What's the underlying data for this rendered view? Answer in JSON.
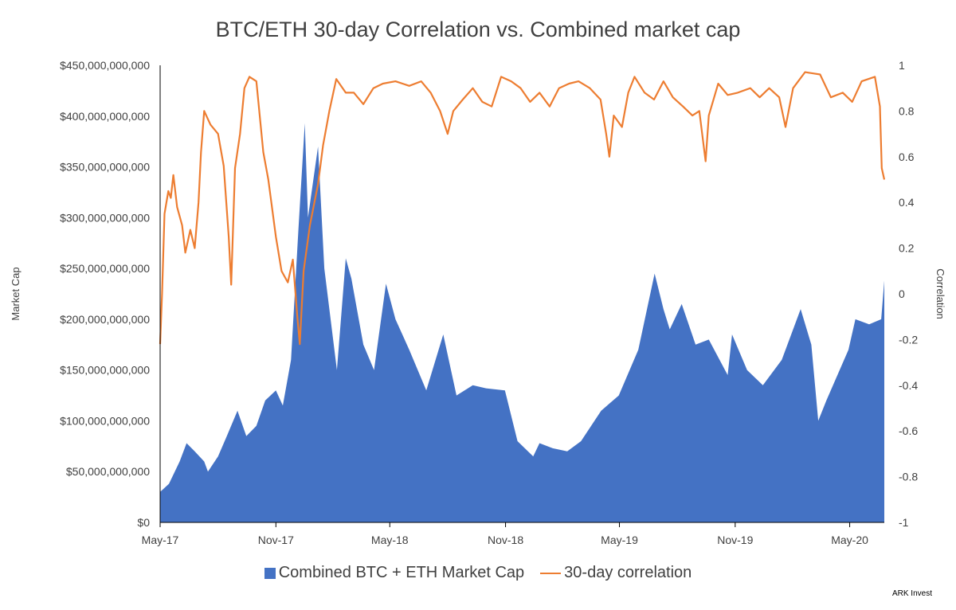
{
  "chart_data": {
    "type": "area",
    "title": "BTC/ETH 30-day Correlation vs. Combined market cap",
    "x_tick_labels": [
      "May-17",
      "Nov-17",
      "May-18",
      "Nov-18",
      "May-19",
      "Nov-19",
      "May-20"
    ],
    "x_range": [
      "2017-05",
      "2020-06-25"
    ],
    "y_left": {
      "label": "Market Cap",
      "range": [
        0,
        450000000000
      ],
      "tick_values": [
        0,
        50000000000,
        100000000000,
        150000000000,
        200000000000,
        250000000000,
        300000000000,
        350000000000,
        400000000000,
        450000000000
      ],
      "tick_labels": [
        "$0",
        "$50,000,000,000",
        "$100,000,000,000",
        "$150,000,000,000",
        "$200,000,000,000",
        "$250,000,000,000",
        "$300,000,000,000",
        "$350,000,000,000",
        "$400,000,000,000",
        "$450,000,000,000"
      ]
    },
    "y_right": {
      "label": "Correlation",
      "range": [
        -1,
        1
      ],
      "tick_values": [
        -1,
        -0.8,
        -0.6,
        -0.4,
        -0.2,
        0,
        0.2,
        0.4,
        0.6,
        0.8,
        1
      ],
      "tick_labels": [
        "-1",
        "-0.8",
        "-0.6",
        "-0.4",
        "-0.2",
        "0",
        "0.2",
        "0.4",
        "0.6",
        "0.8",
        "1"
      ]
    },
    "grid": false,
    "legend_position": "bottom",
    "series": [
      {
        "name": "Combined BTC + ETH Market Cap",
        "kind": "area",
        "axis": "left",
        "color": "#4472C4",
        "points": [
          [
            "2017-05-01",
            30000000000
          ],
          [
            "2017-05-15",
            38000000000
          ],
          [
            "2017-06-01",
            60000000000
          ],
          [
            "2017-06-12",
            78000000000
          ],
          [
            "2017-06-25",
            70000000000
          ],
          [
            "2017-07-10",
            60000000000
          ],
          [
            "2017-07-16",
            50000000000
          ],
          [
            "2017-08-01",
            65000000000
          ],
          [
            "2017-08-15",
            85000000000
          ],
          [
            "2017-09-01",
            110000000000
          ],
          [
            "2017-09-15",
            85000000000
          ],
          [
            "2017-10-01",
            95000000000
          ],
          [
            "2017-10-15",
            120000000000
          ],
          [
            "2017-11-01",
            130000000000
          ],
          [
            "2017-11-12",
            115000000000
          ],
          [
            "2017-11-25",
            160000000000
          ],
          [
            "2017-12-07",
            290000000000
          ],
          [
            "2017-12-17",
            393000000000
          ],
          [
            "2017-12-22",
            300000000000
          ],
          [
            "2018-01-07",
            370000000000
          ],
          [
            "2018-01-17",
            250000000000
          ],
          [
            "2018-02-06",
            150000000000
          ],
          [
            "2018-02-20",
            260000000000
          ],
          [
            "2018-03-01",
            240000000000
          ],
          [
            "2018-03-20",
            175000000000
          ],
          [
            "2018-04-06",
            150000000000
          ],
          [
            "2018-04-25",
            235000000000
          ],
          [
            "2018-05-10",
            200000000000
          ],
          [
            "2018-06-01",
            170000000000
          ],
          [
            "2018-06-28",
            130000000000
          ],
          [
            "2018-07-25",
            185000000000
          ],
          [
            "2018-08-15",
            125000000000
          ],
          [
            "2018-09-10",
            135000000000
          ],
          [
            "2018-10-01",
            132000000000
          ],
          [
            "2018-10-31",
            130000000000
          ],
          [
            "2018-11-20",
            80000000000
          ],
          [
            "2018-12-15",
            65000000000
          ],
          [
            "2018-12-25",
            78000000000
          ],
          [
            "2019-01-15",
            73000000000
          ],
          [
            "2019-02-07",
            70000000000
          ],
          [
            "2019-03-01",
            80000000000
          ],
          [
            "2019-04-02",
            110000000000
          ],
          [
            "2019-04-30",
            125000000000
          ],
          [
            "2019-05-31",
            170000000000
          ],
          [
            "2019-06-26",
            245000000000
          ],
          [
            "2019-07-10",
            210000000000
          ],
          [
            "2019-07-20",
            190000000000
          ],
          [
            "2019-08-08",
            215000000000
          ],
          [
            "2019-08-30",
            175000000000
          ],
          [
            "2019-09-20",
            180000000000
          ],
          [
            "2019-10-20",
            145000000000
          ],
          [
            "2019-10-27",
            185000000000
          ],
          [
            "2019-11-20",
            150000000000
          ],
          [
            "2019-12-15",
            135000000000
          ],
          [
            "2020-01-14",
            160000000000
          ],
          [
            "2020-02-13",
            210000000000
          ],
          [
            "2020-03-01",
            175000000000
          ],
          [
            "2020-03-12",
            100000000000
          ],
          [
            "2020-03-25",
            120000000000
          ],
          [
            "2020-04-29",
            170000000000
          ],
          [
            "2020-05-10",
            200000000000
          ],
          [
            "2020-06-01",
            195000000000
          ],
          [
            "2020-06-20",
            200000000000
          ],
          [
            "2020-06-25",
            238000000000
          ]
        ]
      },
      {
        "name": "30-day correlation",
        "kind": "line",
        "axis": "right",
        "color": "#ED7D31",
        "points": [
          [
            "2017-05-01",
            -0.22
          ],
          [
            "2017-05-04",
            0.0
          ],
          [
            "2017-05-08",
            0.35
          ],
          [
            "2017-05-14",
            0.45
          ],
          [
            "2017-05-18",
            0.42
          ],
          [
            "2017-05-22",
            0.52
          ],
          [
            "2017-05-28",
            0.38
          ],
          [
            "2017-06-05",
            0.3
          ],
          [
            "2017-06-10",
            0.18
          ],
          [
            "2017-06-18",
            0.28
          ],
          [
            "2017-06-25",
            0.2
          ],
          [
            "2017-07-01",
            0.4
          ],
          [
            "2017-07-05",
            0.62
          ],
          [
            "2017-07-10",
            0.8
          ],
          [
            "2017-07-20",
            0.74
          ],
          [
            "2017-08-01",
            0.7
          ],
          [
            "2017-08-10",
            0.56
          ],
          [
            "2017-08-18",
            0.25
          ],
          [
            "2017-08-22",
            0.04
          ],
          [
            "2017-08-28",
            0.55
          ],
          [
            "2017-09-05",
            0.7
          ],
          [
            "2017-09-12",
            0.9
          ],
          [
            "2017-09-20",
            0.95
          ],
          [
            "2017-10-01",
            0.93
          ],
          [
            "2017-10-12",
            0.62
          ],
          [
            "2017-10-20",
            0.5
          ],
          [
            "2017-11-01",
            0.25
          ],
          [
            "2017-11-10",
            0.1
          ],
          [
            "2017-11-20",
            0.05
          ],
          [
            "2017-11-28",
            0.15
          ],
          [
            "2017-12-05",
            -0.1
          ],
          [
            "2017-12-09",
            -0.22
          ],
          [
            "2017-12-15",
            0.1
          ],
          [
            "2017-12-25",
            0.3
          ],
          [
            "2018-01-07",
            0.48
          ],
          [
            "2018-01-15",
            0.65
          ],
          [
            "2018-01-25",
            0.8
          ],
          [
            "2018-02-05",
            0.94
          ],
          [
            "2018-02-20",
            0.88
          ],
          [
            "2018-03-05",
            0.88
          ],
          [
            "2018-03-20",
            0.83
          ],
          [
            "2018-04-05",
            0.9
          ],
          [
            "2018-04-20",
            0.92
          ],
          [
            "2018-05-10",
            0.93
          ],
          [
            "2018-06-01",
            0.91
          ],
          [
            "2018-06-20",
            0.93
          ],
          [
            "2018-07-05",
            0.88
          ],
          [
            "2018-07-20",
            0.8
          ],
          [
            "2018-08-01",
            0.7
          ],
          [
            "2018-08-10",
            0.8
          ],
          [
            "2018-08-25",
            0.85
          ],
          [
            "2018-09-10",
            0.9
          ],
          [
            "2018-09-25",
            0.84
          ],
          [
            "2018-10-10",
            0.82
          ],
          [
            "2018-10-25",
            0.95
          ],
          [
            "2018-11-10",
            0.93
          ],
          [
            "2018-11-25",
            0.9
          ],
          [
            "2018-12-10",
            0.84
          ],
          [
            "2018-12-25",
            0.88
          ],
          [
            "2019-01-10",
            0.82
          ],
          [
            "2019-01-25",
            0.9
          ],
          [
            "2019-02-10",
            0.92
          ],
          [
            "2019-02-25",
            0.93
          ],
          [
            "2019-03-15",
            0.9
          ],
          [
            "2019-04-01",
            0.85
          ],
          [
            "2019-04-10",
            0.7
          ],
          [
            "2019-04-15",
            0.6
          ],
          [
            "2019-04-22",
            0.78
          ],
          [
            "2019-05-05",
            0.73
          ],
          [
            "2019-05-15",
            0.88
          ],
          [
            "2019-05-25",
            0.95
          ],
          [
            "2019-06-10",
            0.88
          ],
          [
            "2019-06-25",
            0.85
          ],
          [
            "2019-07-10",
            0.93
          ],
          [
            "2019-07-25",
            0.86
          ],
          [
            "2019-08-10",
            0.82
          ],
          [
            "2019-08-25",
            0.78
          ],
          [
            "2019-09-05",
            0.8
          ],
          [
            "2019-09-15",
            0.58
          ],
          [
            "2019-09-20",
            0.78
          ],
          [
            "2019-10-05",
            0.92
          ],
          [
            "2019-10-20",
            0.87
          ],
          [
            "2019-11-05",
            0.88
          ],
          [
            "2019-11-25",
            0.9
          ],
          [
            "2019-12-10",
            0.86
          ],
          [
            "2019-12-25",
            0.9
          ],
          [
            "2020-01-10",
            0.86
          ],
          [
            "2020-01-20",
            0.73
          ],
          [
            "2020-02-01",
            0.9
          ],
          [
            "2020-02-20",
            0.97
          ],
          [
            "2020-03-15",
            0.96
          ],
          [
            "2020-04-01",
            0.86
          ],
          [
            "2020-04-20",
            0.88
          ],
          [
            "2020-05-05",
            0.84
          ],
          [
            "2020-05-20",
            0.93
          ],
          [
            "2020-06-10",
            0.95
          ],
          [
            "2020-06-18",
            0.82
          ],
          [
            "2020-06-21",
            0.55
          ],
          [
            "2020-06-25",
            0.5
          ]
        ]
      }
    ],
    "source": "ARK Invest"
  }
}
